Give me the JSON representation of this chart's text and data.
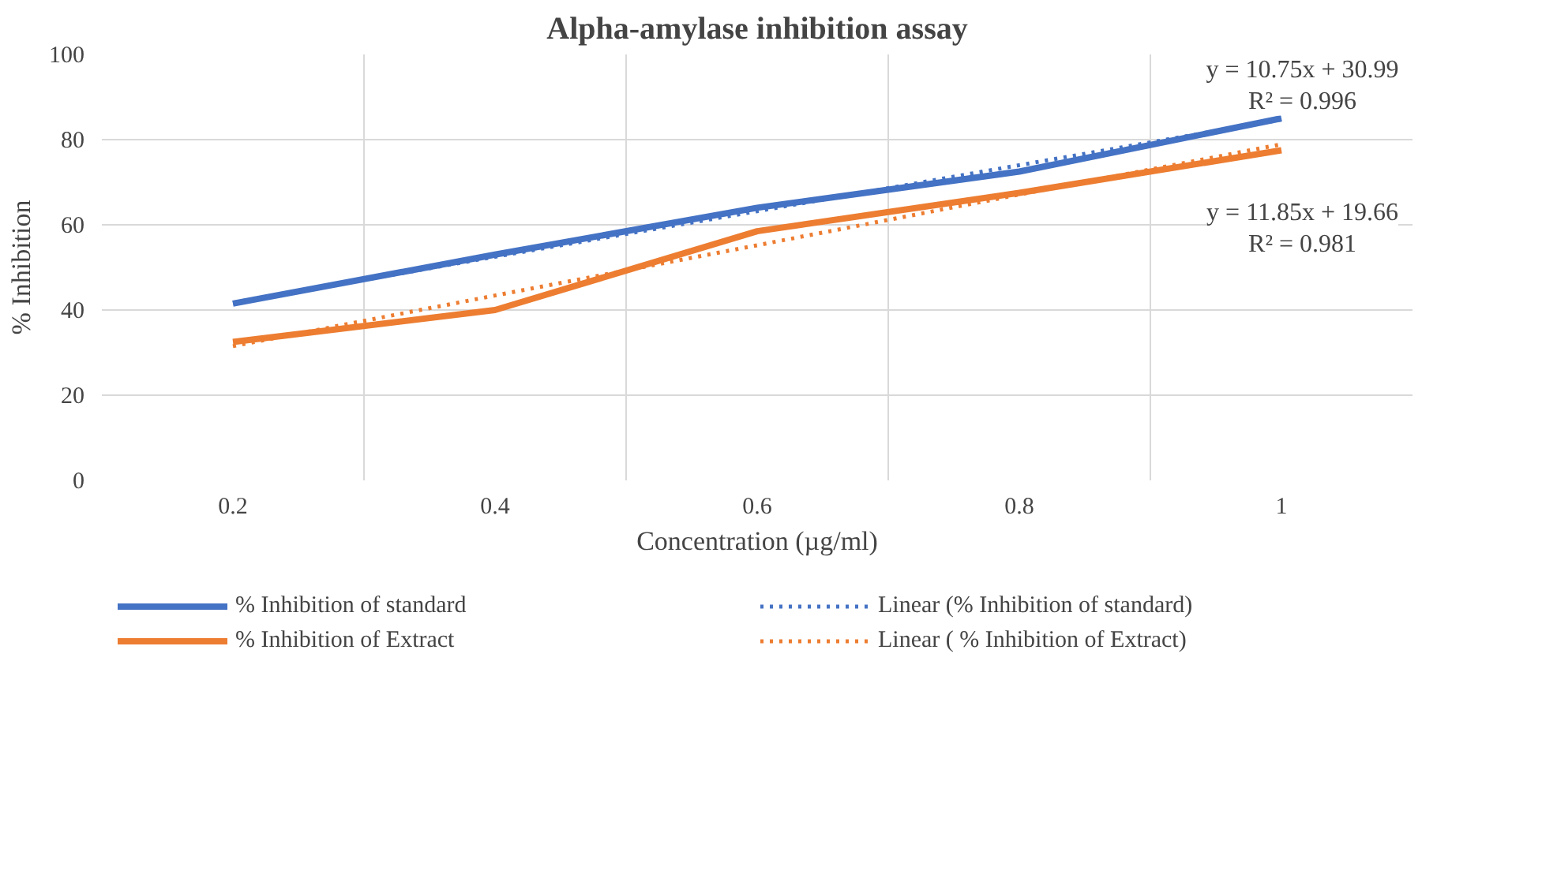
{
  "chart_data": {
    "type": "line",
    "title": "Alpha-amylase inhibition assay",
    "xlabel": "Concentration (µg/ml)",
    "ylabel": "% Inhibition",
    "categories": [
      "0.2",
      "0.4",
      "0.6",
      "0.8",
      "1"
    ],
    "series": [
      {
        "name": "% Inhibition of standard",
        "color": "#4472c4",
        "values": [
          41.5,
          53,
          64,
          72.5,
          85
        ],
        "line_style": "solid"
      },
      {
        "name": "% Inhibition of Extract",
        "color": "#ed7d31",
        "values": [
          32.5,
          40,
          58.5,
          67.5,
          77.5
        ],
        "line_style": "solid"
      },
      {
        "name": "Linear (% Inhibition of standard)",
        "color": "#4472c4",
        "values": [
          41.7,
          52.5,
          63.2,
          74,
          84.7
        ],
        "line_style": "dotted"
      },
      {
        "name": "Linear ( % Inhibition of Extract)",
        "color": "#ed7d31",
        "values": [
          31.5,
          43.4,
          55.2,
          67.1,
          78.9
        ],
        "line_style": "dotted"
      }
    ],
    "ylim": [
      0,
      100
    ],
    "yticks": [
      0,
      20,
      40,
      60,
      80,
      100
    ],
    "grid": true,
    "legend": "bottom",
    "annotations": [
      "y = 10.75x + 30.99\nR² = 0.996",
      "y = 11.85x + 19.66\nR² = 0.981"
    ]
  }
}
